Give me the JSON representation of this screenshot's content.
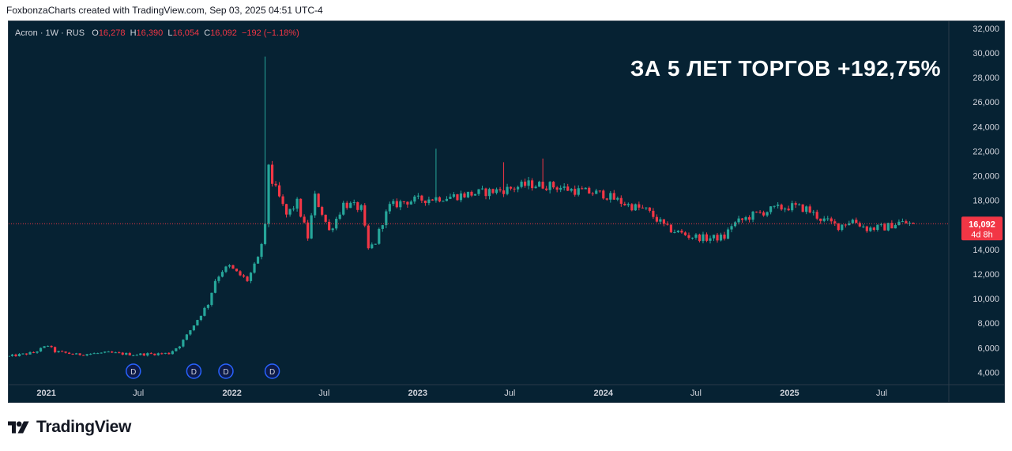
{
  "attribution": "FoxbonzaCharts created with TradingView.com, Sep 03, 2025 04:51 UTC-4",
  "legend": {
    "symbol": "Acron",
    "interval": "1W",
    "exchange": "RUS",
    "open_label": "O",
    "open": "16,278",
    "high_label": "H",
    "high": "16,390",
    "low_label": "L",
    "low": "16,054",
    "close_label": "C",
    "close": "16,092",
    "change": "−192 (−1.18%)"
  },
  "headline": "ЗА 5 ЛЕТ ТОРГОВ +192,75%",
  "price_badge": {
    "price": "16,092",
    "countdown": "4d 8h"
  },
  "brand": {
    "name": "TradingView"
  },
  "colors": {
    "background": "#062233",
    "up": "#26a69a",
    "down": "#f23645",
    "text": "#d1d4dc",
    "dividend_marker": "#2962ff"
  },
  "chart_data": {
    "type": "candlestick",
    "title": "",
    "ylim": [
      3000,
      32500
    ],
    "y_ticks": [
      "32,000",
      "30,000",
      "28,000",
      "26,000",
      "24,000",
      "22,000",
      "20,000",
      "18,000",
      "16,000",
      "14,000",
      "12,000",
      "10,000",
      "8,000",
      "6,000",
      "4,000"
    ],
    "x_ticks": [
      {
        "label": "2021",
        "date": "2021-01-01",
        "bold": true
      },
      {
        "label": "Jul",
        "date": "2021-07-01",
        "bold": false
      },
      {
        "label": "2022",
        "date": "2022-01-01",
        "bold": true
      },
      {
        "label": "Jul",
        "date": "2022-07-01",
        "bold": false
      },
      {
        "label": "2023",
        "date": "2023-01-01",
        "bold": true
      },
      {
        "label": "Jul",
        "date": "2023-07-01",
        "bold": false
      },
      {
        "label": "2024",
        "date": "2024-01-01",
        "bold": true
      },
      {
        "label": "Jul",
        "date": "2024-07-01",
        "bold": false
      },
      {
        "label": "2025",
        "date": "2025-01-01",
        "bold": true
      },
      {
        "label": "Jul",
        "date": "2025-07-01",
        "bold": false
      }
    ],
    "x_range": [
      "2020-10-19",
      "2025-11-10"
    ],
    "dividend_markers": [
      {
        "date": "2021-06-21",
        "label": "D"
      },
      {
        "date": "2021-10-18",
        "label": "D"
      },
      {
        "date": "2021-12-20",
        "label": "D"
      },
      {
        "date": "2022-03-21",
        "label": "D"
      }
    ],
    "close_anchors": [
      [
        "2020-10-19",
        5300
      ],
      [
        "2020-12-07",
        5600
      ],
      [
        "2021-01-04",
        6200
      ],
      [
        "2021-01-18",
        5700
      ],
      [
        "2021-03-01",
        5450
      ],
      [
        "2021-05-03",
        5600
      ],
      [
        "2021-06-21",
        5450
      ],
      [
        "2021-08-30",
        5550
      ],
      [
        "2021-09-20",
        6200
      ],
      [
        "2021-10-04",
        7000
      ],
      [
        "2021-10-25",
        8300
      ],
      [
        "2021-11-15",
        9600
      ],
      [
        "2021-11-29",
        11500
      ],
      [
        "2021-12-13",
        12300
      ],
      [
        "2021-12-27",
        12600
      ],
      [
        "2022-01-10",
        12100
      ],
      [
        "2022-01-31",
        11500
      ],
      [
        "2022-02-21",
        13200
      ],
      [
        "2022-03-07",
        15800
      ],
      [
        "2022-03-14",
        21000
      ],
      [
        "2022-03-21",
        19500
      ],
      [
        "2022-04-04",
        18200
      ],
      [
        "2022-04-18",
        16800
      ],
      [
        "2022-05-09",
        17800
      ],
      [
        "2022-05-30",
        15000
      ],
      [
        "2022-06-13",
        18300
      ],
      [
        "2022-06-27",
        17000
      ],
      [
        "2022-07-11",
        15500
      ],
      [
        "2022-07-25",
        16500
      ],
      [
        "2022-08-08",
        17700
      ],
      [
        "2022-08-22",
        17600
      ],
      [
        "2022-09-12",
        17300
      ],
      [
        "2022-09-26",
        14000
      ],
      [
        "2022-10-10",
        14600
      ],
      [
        "2022-10-24",
        16300
      ],
      [
        "2022-11-07",
        17500
      ],
      [
        "2022-12-05",
        17900
      ],
      [
        "2023-01-16",
        18100
      ],
      [
        "2023-03-06",
        18300
      ],
      [
        "2023-05-01",
        18600
      ],
      [
        "2023-06-26",
        18900
      ],
      [
        "2023-08-07",
        19300
      ],
      [
        "2023-09-18",
        19200
      ],
      [
        "2023-11-06",
        18800
      ],
      [
        "2024-01-01",
        18500
      ],
      [
        "2024-02-19",
        17600
      ],
      [
        "2024-03-25",
        17200
      ],
      [
        "2024-05-06",
        15700
      ],
      [
        "2024-06-17",
        15100
      ],
      [
        "2024-07-22",
        14900
      ],
      [
        "2024-08-26",
        15000
      ],
      [
        "2024-09-09",
        16000
      ],
      [
        "2024-10-21",
        16800
      ],
      [
        "2024-12-02",
        17300
      ],
      [
        "2025-01-06",
        17500
      ],
      [
        "2025-02-03",
        17300
      ],
      [
        "2025-03-03",
        16500
      ],
      [
        "2025-04-07",
        15900
      ],
      [
        "2025-05-05",
        16400
      ],
      [
        "2025-06-02",
        15700
      ],
      [
        "2025-07-07",
        15800
      ],
      [
        "2025-08-04",
        16200
      ],
      [
        "2025-09-01",
        16092
      ]
    ],
    "spikes": [
      {
        "date": "2022-03-07",
        "high": 29700
      },
      {
        "date": "2023-02-06",
        "high": 22200
      },
      {
        "date": "2023-06-19",
        "high": 21100
      },
      {
        "date": "2023-09-04",
        "high": 21400
      }
    ],
    "last_price": 16092
  }
}
